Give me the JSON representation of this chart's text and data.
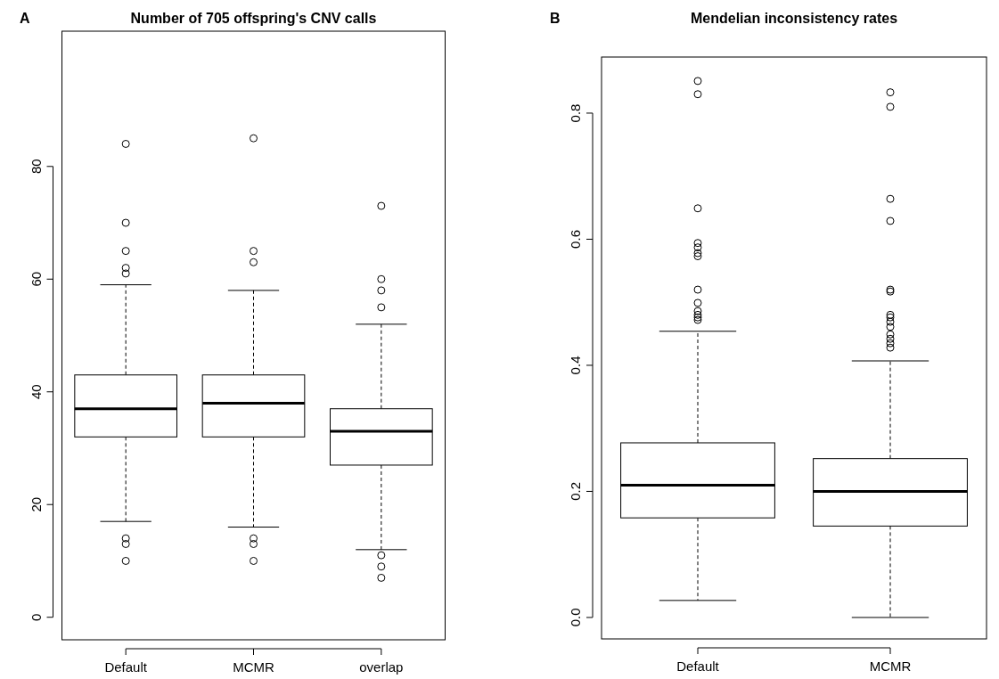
{
  "chart_data": [
    {
      "type": "box",
      "title": "Number of 705 offspring's CNV calls",
      "annotations": [
        "A"
      ],
      "categories": [
        "Default",
        "MCMR",
        "overlap"
      ],
      "boxes": [
        {
          "low": 17,
          "q1": 32,
          "median": 37,
          "q3": 43,
          "high": 59,
          "outliers": [
            84,
            70,
            65,
            62,
            61,
            14,
            13,
            10
          ]
        },
        {
          "low": 16,
          "q1": 32,
          "median": 38,
          "q3": 43,
          "high": 58,
          "outliers": [
            85,
            65,
            63,
            14,
            13,
            10
          ]
        },
        {
          "low": 12,
          "q1": 27,
          "median": 33,
          "q3": 37,
          "high": 52,
          "outliers": [
            73,
            60,
            58,
            55,
            11,
            9,
            7
          ]
        }
      ],
      "ylim": [
        -4,
        104
      ],
      "yticks": [
        0,
        20,
        40,
        60,
        80
      ],
      "marker": "circle",
      "grid": false
    },
    {
      "type": "box",
      "title": "Mendelian inconsistency rates",
      "annotations": [
        "B"
      ],
      "categories": [
        "Default",
        "MCMR"
      ],
      "boxes": [
        {
          "low": 0.027,
          "q1": 0.158,
          "median": 0.21,
          "q3": 0.277,
          "high": 0.454,
          "outliers": [
            0.851,
            0.83,
            0.649,
            0.594,
            0.587,
            0.578,
            0.573,
            0.52,
            0.499,
            0.486,
            0.48,
            0.476,
            0.472
          ]
        },
        {
          "low": 0.0,
          "q1": 0.145,
          "median": 0.2,
          "q3": 0.252,
          "high": 0.407,
          "outliers": [
            0.833,
            0.81,
            0.664,
            0.629,
            0.52,
            0.517,
            0.48,
            0.476,
            0.469,
            0.461,
            0.449,
            0.442,
            0.435,
            0.428
          ]
        }
      ],
      "ylim": [
        -0.034,
        0.889
      ],
      "yticks": [
        {
          "value": 0,
          "label": "0.0"
        },
        0.2,
        0.4,
        0.6,
        0.8
      ],
      "marker": "circle",
      "grid": false
    }
  ]
}
